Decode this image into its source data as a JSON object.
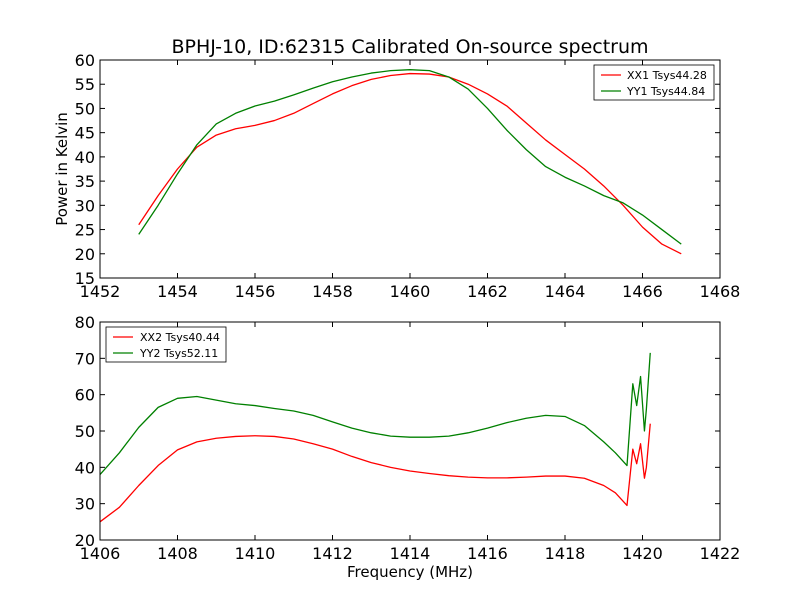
{
  "chart_data": [
    {
      "type": "line",
      "title": "BPHJ-10, ID:62315 Calibrated On-source spectrum",
      "xlabel": "",
      "ylabel": "Power in Kelvin",
      "xlim": [
        1452,
        1468
      ],
      "ylim": [
        15,
        60
      ],
      "xticks": [
        1452,
        1454,
        1456,
        1458,
        1460,
        1462,
        1464,
        1466,
        1468
      ],
      "yticks": [
        15,
        20,
        25,
        30,
        35,
        40,
        45,
        50,
        55,
        60
      ],
      "legend_position": "top-right",
      "grid": false,
      "series": [
        {
          "name": "XX1 Tsys44.28",
          "color": "#ff0000",
          "x": [
            1453,
            1453.5,
            1454,
            1454.5,
            1455,
            1455.5,
            1456,
            1456.5,
            1457,
            1457.5,
            1458,
            1458.5,
            1459,
            1459.5,
            1460,
            1460.5,
            1461,
            1461.5,
            1462,
            1462.5,
            1463,
            1463.5,
            1464,
            1464.5,
            1465,
            1465.5,
            1466,
            1466.5,
            1467
          ],
          "y": [
            26,
            32,
            37.5,
            42,
            44.5,
            45.8,
            46.5,
            47.5,
            49,
            51,
            53,
            54.7,
            56,
            56.8,
            57.2,
            57.1,
            56.5,
            55,
            53,
            50.5,
            47,
            43.5,
            40.5,
            37.5,
            34,
            30,
            25.5,
            22,
            20
          ]
        },
        {
          "name": "YY1 Tsys44.84",
          "color": "#008000",
          "x": [
            1453,
            1453.5,
            1454,
            1454.5,
            1455,
            1455.5,
            1456,
            1456.5,
            1457,
            1457.5,
            1458,
            1458.5,
            1459,
            1459.5,
            1460,
            1460.5,
            1461,
            1461.5,
            1462,
            1462.5,
            1463,
            1463.5,
            1464,
            1464.5,
            1465,
            1465.5,
            1466,
            1466.5,
            1467
          ],
          "y": [
            24,
            30,
            36.5,
            42.5,
            46.8,
            49,
            50.5,
            51.5,
            52.8,
            54.2,
            55.5,
            56.5,
            57.3,
            57.8,
            58,
            57.8,
            56.5,
            54,
            50,
            45.5,
            41.5,
            38,
            35.8,
            34,
            32,
            30.5,
            28,
            25,
            22
          ]
        }
      ]
    },
    {
      "type": "line",
      "title": "",
      "xlabel": "Frequency (MHz)",
      "ylabel": "",
      "xlim": [
        1406,
        1422
      ],
      "ylim": [
        20,
        80
      ],
      "xticks": [
        1406,
        1408,
        1410,
        1412,
        1414,
        1416,
        1418,
        1420,
        1422
      ],
      "yticks": [
        20,
        30,
        40,
        50,
        60,
        70,
        80
      ],
      "legend_position": "top-left",
      "grid": false,
      "series": [
        {
          "name": "XX2 Tsys40.44",
          "color": "#ff0000",
          "x": [
            1406,
            1406.5,
            1407,
            1407.5,
            1408,
            1408.5,
            1409,
            1409.5,
            1410,
            1410.5,
            1411,
            1411.5,
            1412,
            1412.5,
            1413,
            1413.5,
            1414,
            1414.5,
            1415,
            1415.5,
            1416,
            1416.5,
            1417,
            1417.5,
            1418,
            1418.5,
            1419,
            1419.3,
            1419.6,
            1419.75,
            1419.85,
            1419.95,
            1420.05,
            1420.1,
            1420.2
          ],
          "y": [
            25,
            29,
            35,
            40.5,
            44.8,
            47,
            48,
            48.5,
            48.7,
            48.5,
            47.8,
            46.5,
            45,
            43,
            41.3,
            40,
            39,
            38.3,
            37.7,
            37.3,
            37.1,
            37.1,
            37.3,
            37.6,
            37.6,
            37,
            35,
            33,
            29.5,
            45,
            41,
            46.5,
            37,
            40,
            52
          ]
        },
        {
          "name": "YY2 Tsys52.11",
          "color": "#008000",
          "x": [
            1406,
            1406.5,
            1407,
            1407.5,
            1408,
            1408.5,
            1409,
            1409.5,
            1410,
            1410.5,
            1411,
            1411.5,
            1412,
            1412.5,
            1413,
            1413.5,
            1414,
            1414.5,
            1415,
            1415.5,
            1416,
            1416.5,
            1417,
            1417.5,
            1418,
            1418.5,
            1419,
            1419.3,
            1419.6,
            1419.75,
            1419.85,
            1419.95,
            1420.05,
            1420.1,
            1420.2
          ],
          "y": [
            38,
            44,
            51,
            56.5,
            59,
            59.5,
            58.5,
            57.5,
            57,
            56.2,
            55.5,
            54.3,
            52.5,
            50.8,
            49.5,
            48.6,
            48.3,
            48.3,
            48.6,
            49.5,
            50.8,
            52.3,
            53.5,
            54.3,
            54,
            51.5,
            47,
            44,
            40.5,
            63,
            57,
            65,
            50,
            56,
            71.5
          ]
        }
      ]
    }
  ]
}
